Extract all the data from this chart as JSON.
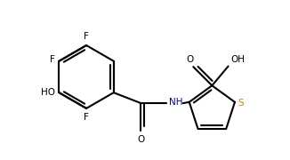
{
  "background": "#ffffff",
  "line_color": "#000000",
  "label_color_N": "#0000bb",
  "label_color_S": "#cc8800",
  "line_width": 1.5,
  "font_size": 7.5,
  "xlim": [
    -0.5,
    3.8
  ],
  "ylim": [
    -1.3,
    1.2
  ]
}
